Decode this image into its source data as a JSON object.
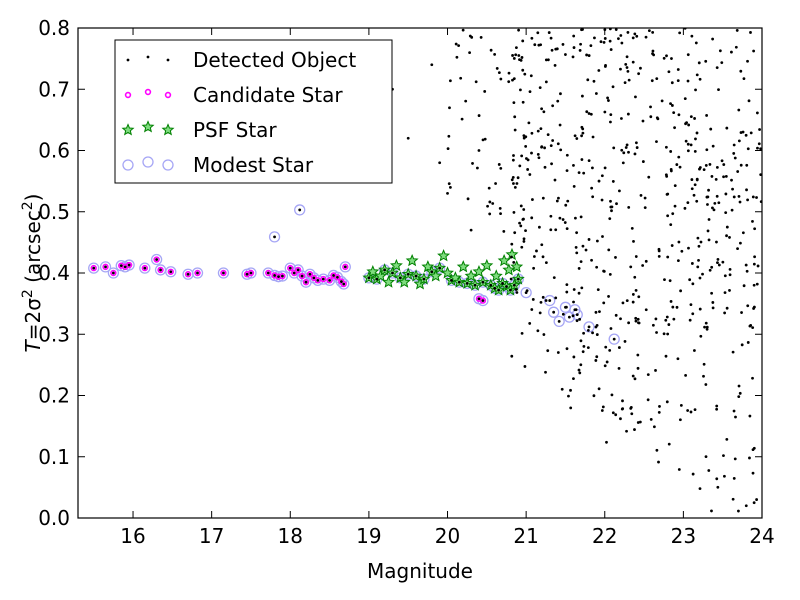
{
  "chart_data": {
    "type": "scatter",
    "xlabel": "Magnitude",
    "ylabel": {
      "prefix": "T",
      "eq": "=2σ",
      "sup": "2",
      "mid": " (arcsec",
      "sup2": "2",
      "suffix": ")"
    },
    "xlim": [
      15.3,
      24.0
    ],
    "ylim": [
      0.0,
      0.8
    ],
    "xticks": [
      16,
      17,
      18,
      19,
      20,
      21,
      22,
      23,
      24
    ],
    "yticks": [
      0.0,
      0.1,
      0.2,
      0.3,
      0.4,
      0.5,
      0.6,
      0.7,
      0.8
    ],
    "grid": false,
    "legend_position": "top-left",
    "colors": {
      "detected": "#000000",
      "candidate": "#ff00ff",
      "psf": "#008000",
      "modest": "#a6a6f5"
    },
    "series": [
      {
        "name": "Modest Star",
        "marker": "open-circle",
        "points": [
          [
            15.5,
            0.408
          ],
          [
            15.65,
            0.41
          ],
          [
            15.75,
            0.4
          ],
          [
            15.85,
            0.412
          ],
          [
            15.9,
            0.41
          ],
          [
            15.95,
            0.413
          ],
          [
            16.15,
            0.408
          ],
          [
            16.3,
            0.422
          ],
          [
            16.35,
            0.405
          ],
          [
            16.48,
            0.402
          ],
          [
            16.7,
            0.398
          ],
          [
            16.82,
            0.4
          ],
          [
            17.15,
            0.4
          ],
          [
            17.45,
            0.398
          ],
          [
            17.5,
            0.4
          ],
          [
            17.72,
            0.4
          ],
          [
            17.8,
            0.396
          ],
          [
            17.85,
            0.394
          ],
          [
            17.9,
            0.395
          ],
          [
            18.0,
            0.408
          ],
          [
            18.05,
            0.4
          ],
          [
            18.1,
            0.405
          ],
          [
            18.15,
            0.395
          ],
          [
            18.2,
            0.385
          ],
          [
            18.25,
            0.398
          ],
          [
            18.3,
            0.392
          ],
          [
            18.35,
            0.388
          ],
          [
            18.42,
            0.39
          ],
          [
            18.5,
            0.388
          ],
          [
            18.55,
            0.396
          ],
          [
            18.6,
            0.393
          ],
          [
            18.65,
            0.386
          ],
          [
            18.7,
            0.41
          ],
          [
            18.68,
            0.382
          ],
          [
            17.8,
            0.459
          ],
          [
            18.12,
            0.503
          ],
          [
            19.0,
            0.392
          ],
          [
            19.1,
            0.39
          ],
          [
            19.2,
            0.405
          ],
          [
            19.3,
            0.4
          ],
          [
            19.4,
            0.392
          ],
          [
            19.5,
            0.398
          ],
          [
            19.6,
            0.395
          ],
          [
            19.7,
            0.39
          ],
          [
            19.8,
            0.402
          ],
          [
            19.9,
            0.408
          ],
          [
            20.05,
            0.388
          ],
          [
            20.15,
            0.385
          ],
          [
            20.25,
            0.383
          ],
          [
            20.35,
            0.38
          ],
          [
            20.45,
            0.385
          ],
          [
            20.55,
            0.38
          ],
          [
            20.6,
            0.375
          ],
          [
            20.65,
            0.372
          ],
          [
            20.7,
            0.383
          ],
          [
            20.75,
            0.378
          ],
          [
            20.8,
            0.372
          ],
          [
            20.85,
            0.38
          ],
          [
            20.9,
            0.39
          ],
          [
            20.4,
            0.358
          ],
          [
            20.45,
            0.355
          ],
          [
            21.0,
            0.368
          ],
          [
            21.3,
            0.355
          ],
          [
            21.35,
            0.336
          ],
          [
            21.42,
            0.321
          ],
          [
            21.5,
            0.344
          ],
          [
            21.55,
            0.328
          ],
          [
            21.62,
            0.34
          ],
          [
            21.65,
            0.332
          ],
          [
            21.8,
            0.312
          ],
          [
            22.12,
            0.292
          ]
        ]
      },
      {
        "name": "Candidate Star",
        "marker": "small-circle",
        "points": [
          [
            15.5,
            0.408
          ],
          [
            15.65,
            0.41
          ],
          [
            15.75,
            0.4
          ],
          [
            15.85,
            0.412
          ],
          [
            15.9,
            0.41
          ],
          [
            15.95,
            0.413
          ],
          [
            16.15,
            0.408
          ],
          [
            16.3,
            0.422
          ],
          [
            16.35,
            0.405
          ],
          [
            16.48,
            0.402
          ],
          [
            16.7,
            0.398
          ],
          [
            16.82,
            0.4
          ],
          [
            17.15,
            0.4
          ],
          [
            17.45,
            0.398
          ],
          [
            17.5,
            0.4
          ],
          [
            17.72,
            0.4
          ],
          [
            17.8,
            0.396
          ],
          [
            17.85,
            0.394
          ],
          [
            17.9,
            0.395
          ],
          [
            18.0,
            0.408
          ],
          [
            18.05,
            0.4
          ],
          [
            18.1,
            0.405
          ],
          [
            18.15,
            0.395
          ],
          [
            18.2,
            0.385
          ],
          [
            18.25,
            0.398
          ],
          [
            18.3,
            0.392
          ],
          [
            18.35,
            0.388
          ],
          [
            18.42,
            0.39
          ],
          [
            18.5,
            0.388
          ],
          [
            18.55,
            0.396
          ],
          [
            18.6,
            0.393
          ],
          [
            18.65,
            0.386
          ],
          [
            18.7,
            0.41
          ],
          [
            18.68,
            0.382
          ],
          [
            20.4,
            0.358
          ],
          [
            20.45,
            0.355
          ]
        ]
      },
      {
        "name": "PSF Star",
        "marker": "star",
        "points": [
          [
            19.0,
            0.392
          ],
          [
            19.05,
            0.402
          ],
          [
            19.1,
            0.39
          ],
          [
            19.15,
            0.395
          ],
          [
            19.2,
            0.405
          ],
          [
            19.25,
            0.385
          ],
          [
            19.3,
            0.4
          ],
          [
            19.35,
            0.412
          ],
          [
            19.4,
            0.392
          ],
          [
            19.45,
            0.385
          ],
          [
            19.5,
            0.398
          ],
          [
            19.55,
            0.42
          ],
          [
            19.6,
            0.395
          ],
          [
            19.65,
            0.382
          ],
          [
            19.7,
            0.39
          ],
          [
            19.75,
            0.41
          ],
          [
            19.8,
            0.402
          ],
          [
            19.85,
            0.395
          ],
          [
            19.9,
            0.408
          ],
          [
            19.95,
            0.428
          ],
          [
            20.0,
            0.4
          ],
          [
            20.05,
            0.388
          ],
          [
            20.1,
            0.392
          ],
          [
            20.15,
            0.385
          ],
          [
            20.2,
            0.41
          ],
          [
            20.25,
            0.383
          ],
          [
            20.3,
            0.395
          ],
          [
            20.35,
            0.38
          ],
          [
            20.4,
            0.402
          ],
          [
            20.45,
            0.385
          ],
          [
            20.5,
            0.412
          ],
          [
            20.55,
            0.38
          ],
          [
            20.6,
            0.375
          ],
          [
            20.62,
            0.395
          ],
          [
            20.65,
            0.372
          ],
          [
            20.7,
            0.383
          ],
          [
            20.72,
            0.42
          ],
          [
            20.75,
            0.378
          ],
          [
            20.78,
            0.405
          ],
          [
            20.8,
            0.372
          ],
          [
            20.82,
            0.43
          ],
          [
            20.85,
            0.38
          ],
          [
            20.88,
            0.41
          ],
          [
            20.9,
            0.39
          ]
        ]
      },
      {
        "name": "Detected Object",
        "marker": "dot",
        "points": "__generated__"
      }
    ]
  }
}
